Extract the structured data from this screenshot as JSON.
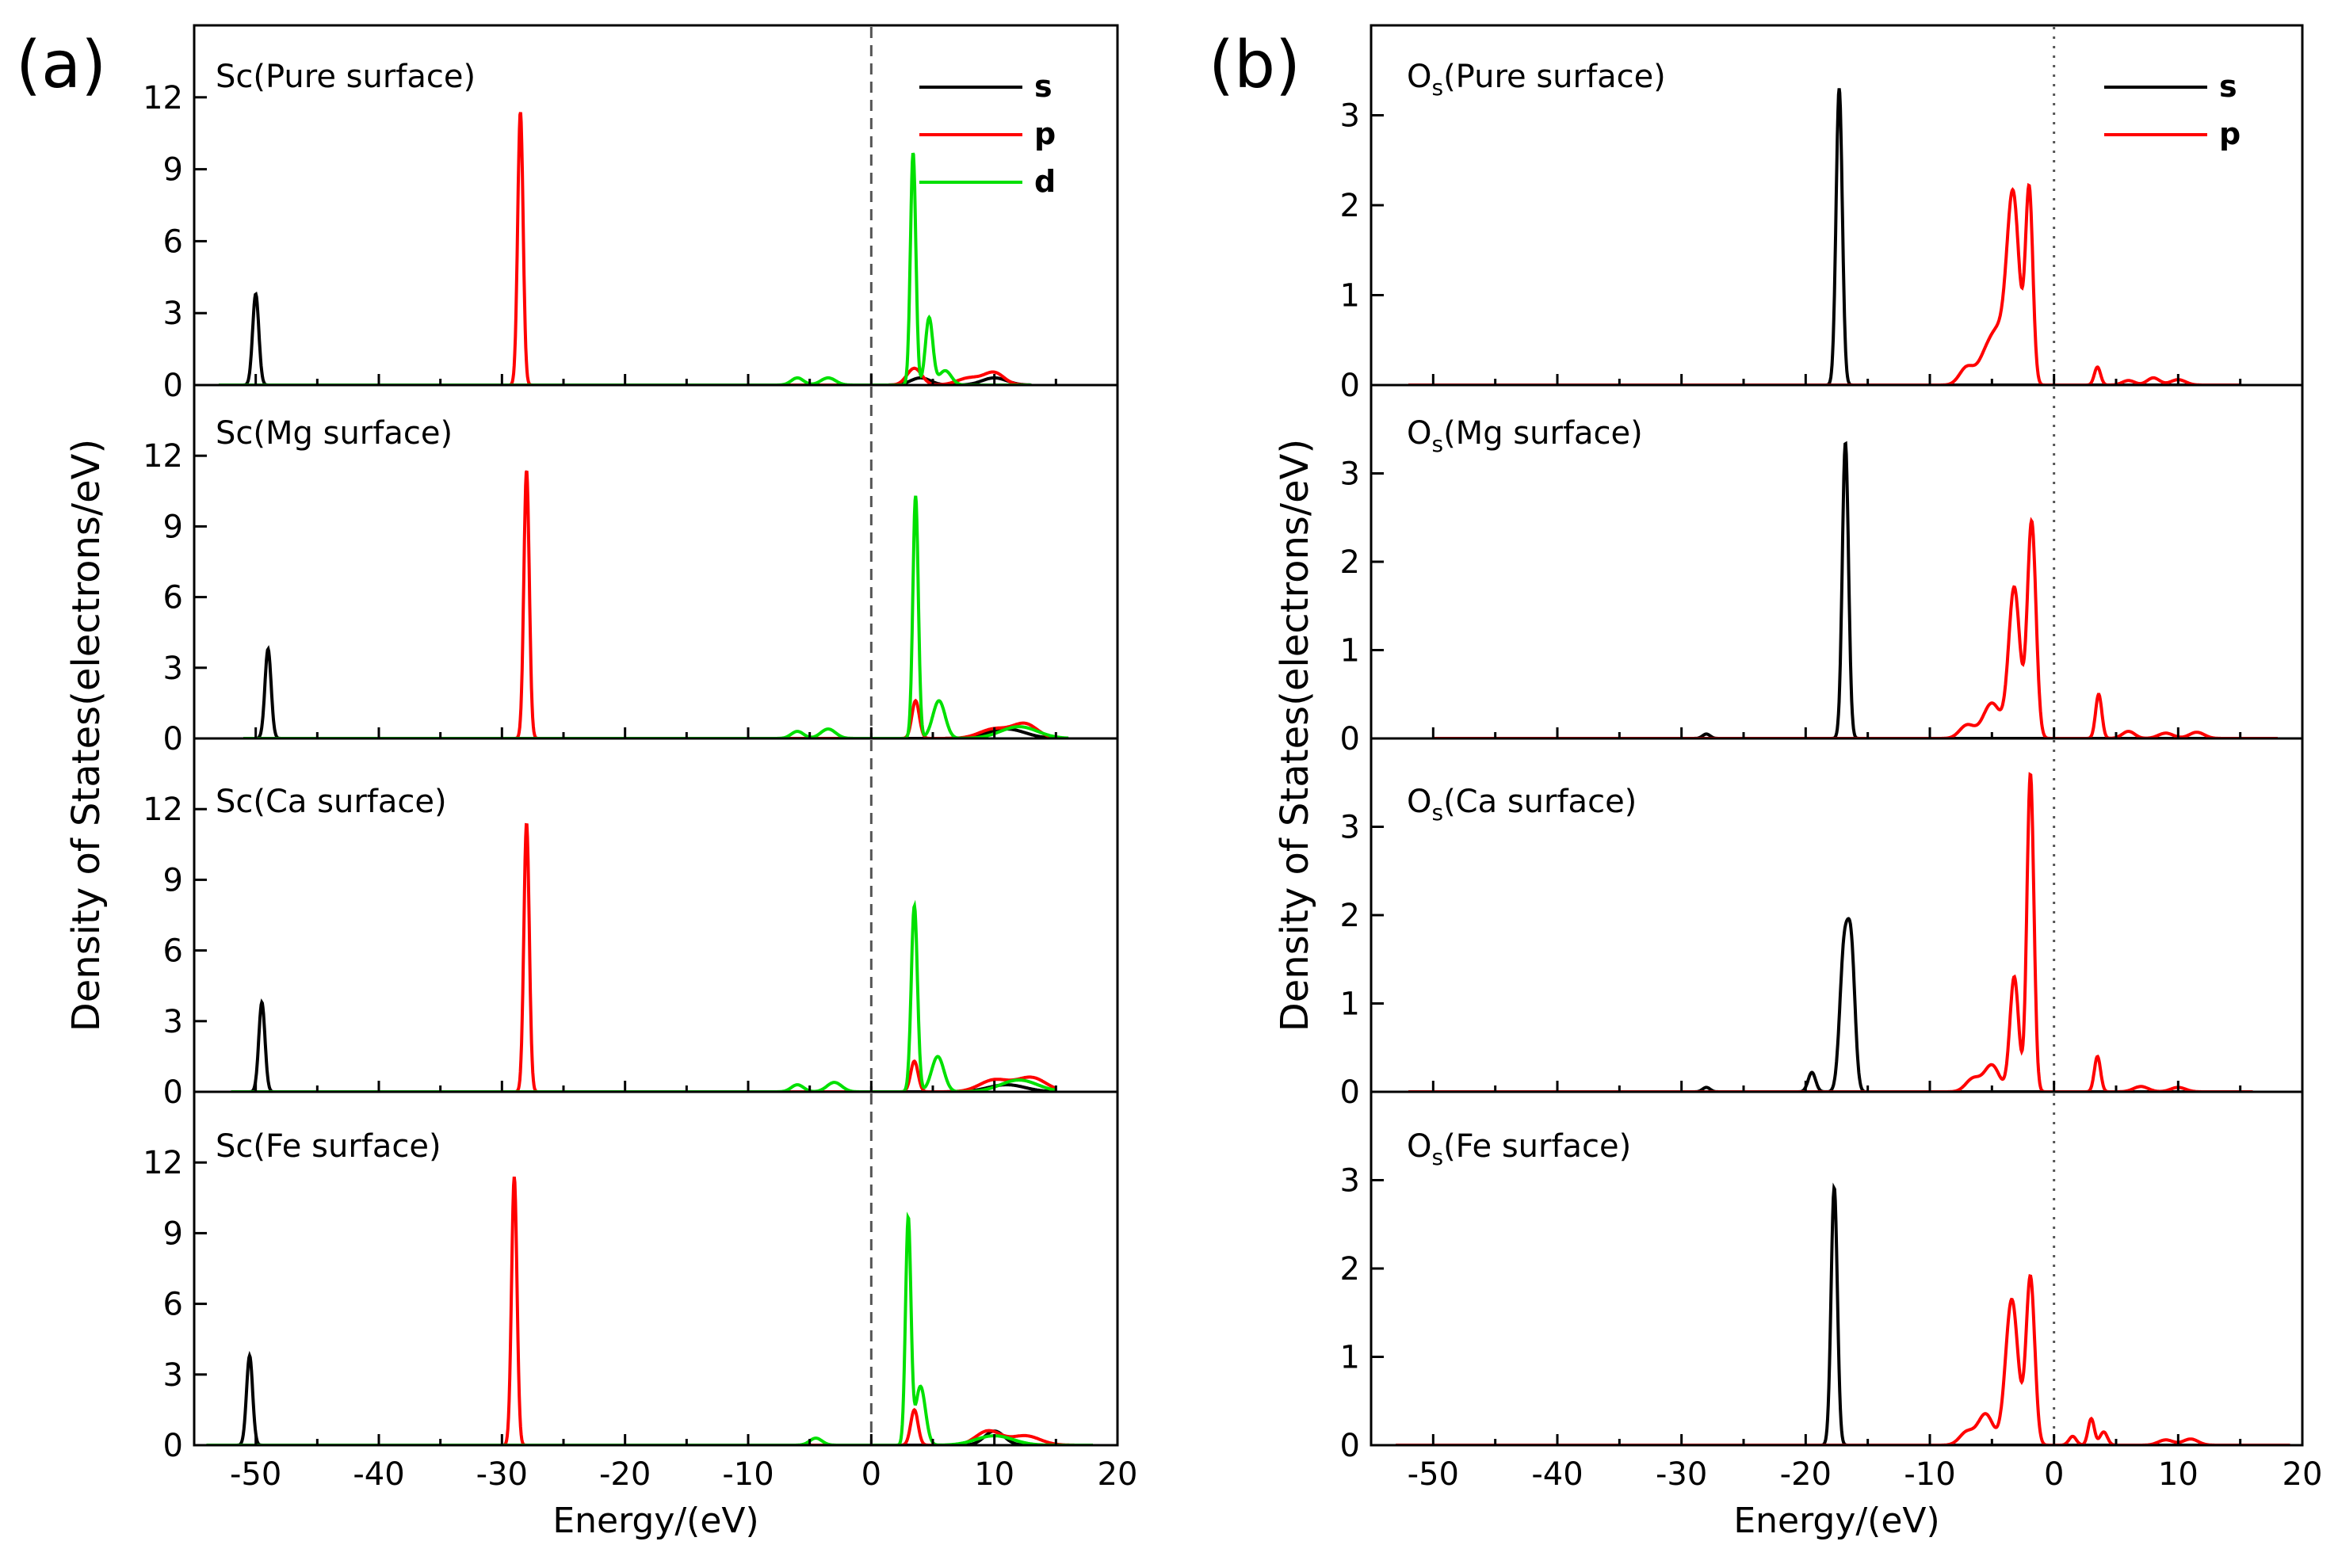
{
  "colors": {
    "s": "#000000",
    "p": "#ff0000",
    "d": "#00e000",
    "axis": "#000000",
    "fermi": "#555555"
  },
  "chart_data": [
    {
      "type": "line",
      "figure_label": "(a)",
      "xlabel": "Energy/(eV)",
      "ylabel": "Density of States(electrons/eV)",
      "xlim": [
        -55,
        20
      ],
      "ylim": [
        0,
        15
      ],
      "x_ticks": [
        -50,
        -40,
        -30,
        -20,
        -10,
        0,
        10,
        20
      ],
      "x_tick_labels": [
        "-50",
        "-40",
        "-30",
        "-20",
        "-10",
        "0",
        "10",
        "20"
      ],
      "y_ticks": [
        0,
        3,
        6,
        9,
        12
      ],
      "y_tick_labels": [
        "0",
        "3",
        "6",
        "9",
        "12"
      ],
      "fermi_level": 0,
      "fermi_style": "dashed",
      "legend": {
        "position": "top-right",
        "entries": [
          "s",
          "p",
          "d"
        ]
      },
      "panels": [
        {
          "label": "Sc(Pure surface)",
          "data_range": [
            -53,
            13
          ],
          "series": [
            {
              "name": "s",
              "peaks": [
                [
                  -50,
                  3.8,
                  0.25
                ],
                [
                  4,
                  0.3,
                  0.8
                ],
                [
                  10,
                  0.3,
                  1
                ]
              ]
            },
            {
              "name": "p",
              "peaks": [
                [
                  -28.5,
                  11.4,
                  0.22
                ],
                [
                  3.5,
                  0.7,
                  0.6
                ],
                [
                  8,
                  0.3,
                  1
                ],
                [
                  10,
                  0.5,
                  0.8
                ]
              ]
            },
            {
              "name": "d",
              "peaks": [
                [
                  -6,
                  0.3,
                  0.5
                ],
                [
                  -3.5,
                  0.3,
                  0.6
                ],
                [
                  3.4,
                  9.7,
                  0.22
                ],
                [
                  4.7,
                  2.8,
                  0.3
                ],
                [
                  6,
                  0.6,
                  0.5
                ]
              ]
            }
          ]
        },
        {
          "label": "Sc(Mg surface)",
          "data_range": [
            -51,
            16
          ],
          "series": [
            {
              "name": "s",
              "peaks": [
                [
                  -49,
                  3.8,
                  0.25
                ],
                [
                  11,
                  0.4,
                  1.5
                ]
              ]
            },
            {
              "name": "p",
              "peaks": [
                [
                  -28,
                  11.4,
                  0.22
                ],
                [
                  3.6,
                  1.6,
                  0.3
                ],
                [
                  10,
                  0.4,
                  1.2
                ],
                [
                  12.5,
                  0.6,
                  1
                ]
              ]
            },
            {
              "name": "d",
              "peaks": [
                [
                  -6,
                  0.3,
                  0.5
                ],
                [
                  -3.5,
                  0.4,
                  0.6
                ],
                [
                  3.6,
                  10.3,
                  0.22
                ],
                [
                  5.5,
                  1.6,
                  0.5
                ],
                [
                  12,
                  0.5,
                  1.5
                ]
              ]
            }
          ]
        },
        {
          "label": "Sc(Ca surface)",
          "data_range": [
            -52,
            15
          ],
          "series": [
            {
              "name": "s",
              "peaks": [
                [
                  -49.5,
                  3.8,
                  0.25
                ],
                [
                  11,
                  0.3,
                  1.5
                ]
              ]
            },
            {
              "name": "p",
              "peaks": [
                [
                  -28,
                  11.4,
                  0.22
                ],
                [
                  3.5,
                  1.3,
                  0.3
                ],
                [
                  10,
                  0.5,
                  1.2
                ],
                [
                  13,
                  0.6,
                  1.2
                ]
              ]
            },
            {
              "name": "d",
              "peaks": [
                [
                  -6,
                  0.3,
                  0.5
                ],
                [
                  -3,
                  0.4,
                  0.6
                ],
                [
                  3.5,
                  7.9,
                  0.25
                ],
                [
                  5.4,
                  1.5,
                  0.5
                ],
                [
                  12,
                  0.5,
                  1.5
                ]
              ]
            }
          ]
        },
        {
          "label": "Sc(Fe surface)",
          "data_range": [
            -54,
            18
          ],
          "series": [
            {
              "name": "s",
              "peaks": [
                [
                  -50.5,
                  3.8,
                  0.25
                ],
                [
                  10,
                  0.6,
                  0.8
                ]
              ]
            },
            {
              "name": "p",
              "peaks": [
                [
                  -29,
                  11.4,
                  0.22
                ],
                [
                  3.5,
                  1.5,
                  0.3
                ],
                [
                  9.5,
                  0.6,
                  1
                ],
                [
                  12.5,
                  0.4,
                  1.2
                ]
              ]
            },
            {
              "name": "d",
              "peaks": [
                [
                  -4.5,
                  0.3,
                  0.5
                ],
                [
                  3,
                  9.6,
                  0.22
                ],
                [
                  4,
                  2.5,
                  0.4
                ],
                [
                  10,
                  0.4,
                  1.5
                ]
              ]
            }
          ]
        }
      ]
    },
    {
      "type": "line",
      "figure_label": "(b)",
      "xlabel": "Energy/(eV)",
      "ylabel": "Density of States(electrons/eV)",
      "xlim": [
        -55,
        20
      ],
      "ylim": [
        0,
        4
      ],
      "x_ticks": [
        -50,
        -40,
        -30,
        -20,
        -10,
        0,
        10,
        20
      ],
      "x_tick_labels": [
        "-50",
        "-40",
        "-30",
        "-20",
        "-10",
        "0",
        "10",
        "20"
      ],
      "y_ticks": [
        0,
        1,
        2,
        3
      ],
      "y_tick_labels": [
        "0",
        "1",
        "2",
        "3"
      ],
      "fermi_level": 0,
      "fermi_style": "dotted",
      "legend": {
        "position": "top-right",
        "entries": [
          "s",
          "p"
        ]
      },
      "panels": [
        {
          "label_main": "O",
          "label_sub": "s",
          "label_rest": "(Pure surface)",
          "data_range": [
            -52,
            15
          ],
          "series": [
            {
              "name": "s",
              "peaks": [
                [
                  -17.3,
                  3.3,
                  0.25
                ]
              ]
            },
            {
              "name": "p",
              "peaks": [
                [
                  -7,
                  0.2,
                  0.6
                ],
                [
                  -5.5,
                  0.3,
                  0.6
                ],
                [
                  -3.3,
                  2.1,
                  0.5
                ],
                [
                  -4.5,
                  0.5,
                  0.6
                ],
                [
                  -2.0,
                  2.15,
                  0.3
                ],
                [
                  3.5,
                  0.2,
                  0.25
                ],
                [
                  6,
                  0.05,
                  0.5
                ],
                [
                  8,
                  0.08,
                  0.5
                ],
                [
                  10,
                  0.06,
                  0.6
                ]
              ]
            }
          ]
        },
        {
          "label_main": "O",
          "label_sub": "s",
          "label_rest": "(Mg surface)",
          "data_range": [
            -50,
            18
          ],
          "series": [
            {
              "name": "s",
              "peaks": [
                [
                  -28,
                  0.05,
                  0.3
                ],
                [
                  -16.8,
                  3.35,
                  0.25
                ]
              ]
            },
            {
              "name": "p",
              "peaks": [
                [
                  -7,
                  0.15,
                  0.6
                ],
                [
                  -5,
                  0.4,
                  0.7
                ],
                [
                  -3.2,
                  1.7,
                  0.45
                ],
                [
                  -1.8,
                  2.45,
                  0.35
                ],
                [
                  3.6,
                  0.5,
                  0.25
                ],
                [
                  6,
                  0.08,
                  0.5
                ],
                [
                  9,
                  0.06,
                  0.6
                ],
                [
                  11.5,
                  0.07,
                  0.6
                ]
              ]
            }
          ]
        },
        {
          "label_main": "O",
          "label_sub": "s",
          "label_rest": "(Ca surface)",
          "data_range": [
            -52,
            16
          ],
          "series": [
            {
              "name": "s",
              "peaks": [
                [
                  -28,
                  0.05,
                  0.3
                ],
                [
                  -19.5,
                  0.22,
                  0.3
                ],
                [
                  -16.9,
                  1.6,
                  0.35
                ],
                [
                  -16.3,
                  1.4,
                  0.3
                ]
              ]
            },
            {
              "name": "p",
              "peaks": [
                [
                  -6.5,
                  0.15,
                  0.6
                ],
                [
                  -5,
                  0.3,
                  0.6
                ],
                [
                  -3.2,
                  1.3,
                  0.35
                ],
                [
                  -1.9,
                  3.6,
                  0.28
                ],
                [
                  3.5,
                  0.4,
                  0.25
                ],
                [
                  7,
                  0.06,
                  0.6
                ],
                [
                  10,
                  0.05,
                  0.6
                ]
              ]
            }
          ]
        },
        {
          "label_main": "O",
          "label_sub": "s",
          "label_rest": "(Fe surface)",
          "data_range": [
            -53,
            19
          ],
          "series": [
            {
              "name": "s",
              "peaks": [
                [
                  -17.7,
                  2.92,
                  0.25
                ]
              ]
            },
            {
              "name": "p",
              "peaks": [
                [
                  -7,
                  0.15,
                  0.6
                ],
                [
                  -5.5,
                  0.35,
                  0.6
                ],
                [
                  -3.4,
                  1.65,
                  0.5
                ],
                [
                  -1.9,
                  1.9,
                  0.35
                ],
                [
                  1.5,
                  0.1,
                  0.3
                ],
                [
                  3,
                  0.3,
                  0.25
                ],
                [
                  4,
                  0.15,
                  0.3
                ],
                [
                  9,
                  0.06,
                  0.6
                ],
                [
                  11,
                  0.07,
                  0.6
                ]
              ]
            }
          ]
        }
      ]
    }
  ]
}
